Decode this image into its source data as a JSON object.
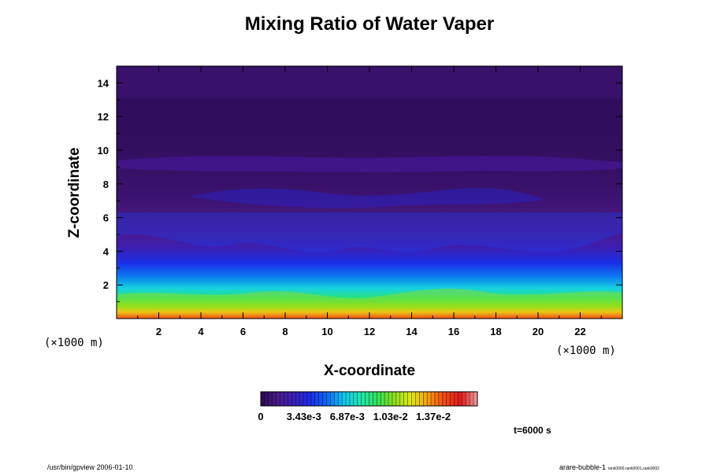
{
  "chart_data": {
    "type": "heatmap",
    "title": "Mixing Ratio of Water Vaper",
    "xlabel": "X-coordinate",
    "ylabel": "Z-coordinate",
    "x_unit_label": "(×1000 m)",
    "y_unit_label": "(×1000 m)",
    "xlim": [
      0,
      24
    ],
    "ylim": [
      0,
      15
    ],
    "x_ticks": [
      2,
      4,
      6,
      8,
      10,
      12,
      14,
      16,
      18,
      20,
      22
    ],
    "y_ticks": [
      2,
      4,
      6,
      8,
      10,
      12,
      14
    ],
    "colorbar": {
      "min": 0,
      "max": 0.0172,
      "tick_labels": [
        "0",
        "3.43e-3",
        "6.87e-3",
        "1.03e-2",
        "1.37e-2"
      ],
      "tick_values": [
        0,
        0.00343,
        0.00687,
        0.0103,
        0.0137
      ],
      "colors": [
        "#2a0a50",
        "#4b1a8a",
        "#3a20b8",
        "#1a2ee8",
        "#0a6cf0",
        "#12c8f2",
        "#1ee8b0",
        "#2ee05a",
        "#8ae01e",
        "#e0e81a",
        "#f5a010",
        "#f04a16",
        "#e01a1a",
        "#f0a0a0"
      ]
    },
    "z_profile": [
      {
        "z": 0.0,
        "q": 0.0145
      },
      {
        "z": 0.4,
        "q": 0.0125
      },
      {
        "z": 0.8,
        "q": 0.0105
      },
      {
        "z": 1.2,
        "q": 0.0088
      },
      {
        "z": 1.8,
        "q": 0.007
      },
      {
        "z": 2.5,
        "q": 0.0055
      },
      {
        "z": 3.3,
        "q": 0.004
      },
      {
        "z": 4.2,
        "q": 0.0025
      },
      {
        "z": 5.0,
        "q": 0.0016
      },
      {
        "z": 6.0,
        "q": 0.0011
      },
      {
        "z": 7.0,
        "q": 0.0008
      },
      {
        "z": 8.0,
        "q": 0.0006
      },
      {
        "z": 9.5,
        "q": 0.0004
      },
      {
        "z": 11.0,
        "q": 0.0003
      },
      {
        "z": 13.0,
        "q": 0.0003
      },
      {
        "z": 13.2,
        "q": 0.0006
      },
      {
        "z": 15.0,
        "q": 0.0006
      }
    ]
  },
  "annotations": {
    "time_label": "t=6000 s",
    "footer_left": "/usr/bin/gpview 2006-01-10",
    "footer_right_main": "arare-bubble-1",
    "footer_right_sub": "rank0000,rank0001,rank0002"
  }
}
